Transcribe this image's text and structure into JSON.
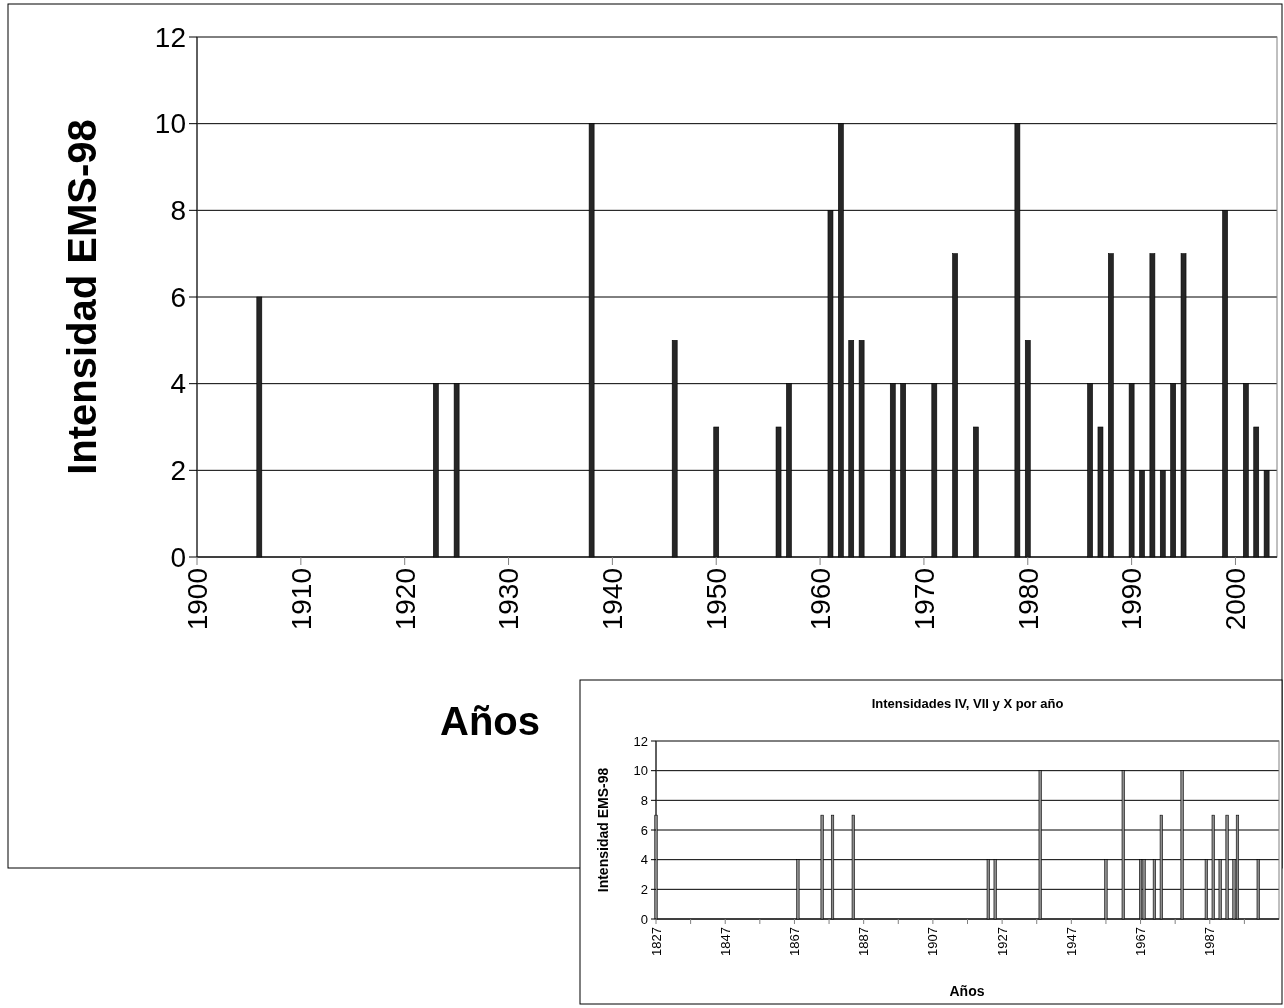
{
  "chart_data": [
    {
      "type": "bar",
      "xlabel": "Años",
      "ylabel": "Intensidad EMS-98",
      "x": [
        1906,
        1923,
        1925,
        1938,
        1946,
        1950,
        1956,
        1957,
        1961,
        1962,
        1963,
        1964,
        1967,
        1968,
        1971,
        1973,
        1975,
        1979,
        1980,
        1986,
        1987,
        1988,
        1990,
        1991,
        1992,
        1993,
        1994,
        1995,
        1999,
        2001,
        2002,
        2003
      ],
      "values": [
        6,
        4,
        4,
        10,
        5,
        3,
        3,
        4,
        8,
        10,
        5,
        5,
        4,
        4,
        4,
        7,
        3,
        10,
        5,
        4,
        3,
        7,
        4,
        2,
        7,
        2,
        4,
        7,
        8,
        4,
        3,
        2
      ],
      "color": "#262626",
      "xlim": [
        1900,
        2004
      ],
      "xticks": [
        1900,
        1910,
        1920,
        1930,
        1940,
        1950,
        1960,
        1970,
        1980,
        1990,
        2000
      ],
      "ylim": [
        0,
        12
      ],
      "yticks": [
        0,
        2,
        4,
        6,
        8,
        10,
        12
      ],
      "grid": "y"
    },
    {
      "type": "bar",
      "title": "Intensidades IV, VII y X por año",
      "xlabel": "Años",
      "ylabel": "Intensidad EMS-98",
      "x": [
        1827,
        1868,
        1875,
        1878,
        1884,
        1923,
        1925,
        1938,
        1957,
        1962,
        1967,
        1968,
        1971,
        1973,
        1979,
        1986,
        1988,
        1990,
        1992,
        1994,
        1995,
        2001
      ],
      "values": [
        7,
        4,
        7,
        7,
        7,
        4,
        4,
        10,
        4,
        10,
        4,
        4,
        4,
        7,
        10,
        4,
        7,
        4,
        7,
        4,
        7,
        4
      ],
      "color": "#8c8c8c",
      "xlim": [
        1827,
        2007
      ],
      "xticks": [
        1827,
        {
          "value": 1837,
          "label": null
        },
        1847,
        {
          "value": 1857,
          "label": null
        },
        1867,
        {
          "value": 1877,
          "label": null
        },
        1887,
        {
          "value": 1897,
          "label": null
        },
        1907,
        {
          "value": 1917,
          "label": null
        },
        1927,
        {
          "value": 1937,
          "label": null
        },
        1947,
        {
          "value": 1957,
          "label": null
        },
        1967,
        {
          "value": 1977,
          "label": null
        },
        1987,
        {
          "value": 1997,
          "label": null
        }
      ],
      "ylim": [
        0,
        12
      ],
      "yticks": [
        0,
        2,
        4,
        6,
        8,
        10,
        12
      ],
      "grid": "y"
    }
  ]
}
